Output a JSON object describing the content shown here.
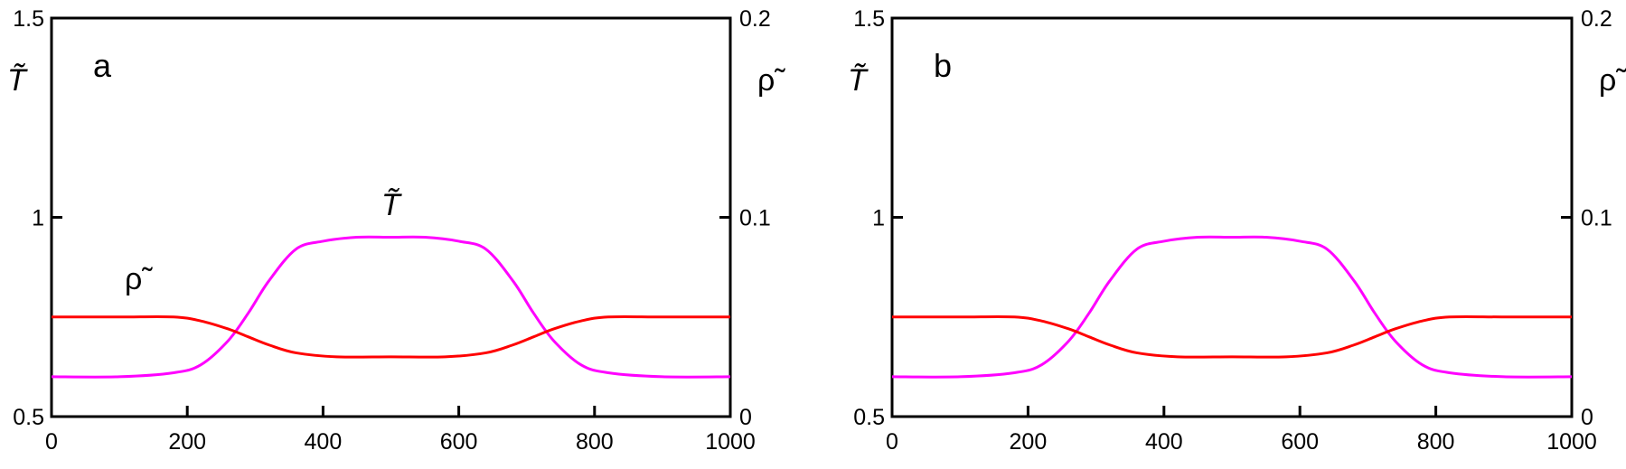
{
  "figure": {
    "colors": {
      "T": "#ff00ff",
      "rho": "#ff0000",
      "axis": "#000000"
    }
  },
  "chart_data": [
    {
      "type": "line",
      "panel_label": "a",
      "xlabel": "",
      "ylabel_left": "T̃",
      "ylabel_right": "ρ̃",
      "xlim": [
        0,
        1000
      ],
      "ylim_left": [
        0.5,
        1.5
      ],
      "ylim_right": [
        0,
        0.2
      ],
      "xticks": [
        "0",
        "200",
        "400",
        "600",
        "800",
        "1000"
      ],
      "yticks_left": [
        "0.5",
        "1",
        "1.5"
      ],
      "yticks_right": [
        "0",
        "0.1",
        "0.2"
      ],
      "annotations": [
        {
          "text": "T̃",
          "x": 490,
          "y_left": 1.06
        },
        {
          "text": "ρ̃",
          "x": 120,
          "y_left": 0.81
        }
      ],
      "grid": false,
      "series": [
        {
          "name": "T̃",
          "axis": "left",
          "color": "#ff00ff",
          "x": [
            0,
            100,
            180,
            220,
            260,
            290,
            320,
            360,
            400,
            450,
            500,
            550,
            600,
            640,
            680,
            710,
            740,
            780,
            820,
            900,
            1000
          ],
          "y": [
            0.6,
            0.6,
            0.61,
            0.63,
            0.69,
            0.76,
            0.84,
            0.92,
            0.94,
            0.95,
            0.95,
            0.95,
            0.94,
            0.92,
            0.84,
            0.76,
            0.69,
            0.63,
            0.61,
            0.6,
            0.6
          ]
        },
        {
          "name": "ρ̃",
          "axis": "right",
          "color": "#ff0000",
          "x": [
            0,
            100,
            180,
            220,
            260,
            290,
            320,
            360,
            420,
            500,
            580,
            640,
            680,
            710,
            740,
            780,
            820,
            900,
            1000
          ],
          "y": [
            0.05,
            0.05,
            0.05,
            0.048,
            0.044,
            0.04,
            0.036,
            0.032,
            0.03,
            0.03,
            0.03,
            0.032,
            0.036,
            0.04,
            0.044,
            0.048,
            0.05,
            0.05,
            0.05
          ]
        }
      ]
    },
    {
      "type": "line",
      "panel_label": "b",
      "xlabel": "",
      "ylabel_left": "T̃",
      "ylabel_right": "ρ̃",
      "xlim": [
        0,
        1000
      ],
      "ylim_left": [
        0.5,
        1.5
      ],
      "ylim_right": [
        0,
        0.2
      ],
      "xticks": [
        "0",
        "200",
        "400",
        "600",
        "800",
        "1000"
      ],
      "yticks_left": [
        "0.5",
        "1",
        "1.5"
      ],
      "yticks_right": [
        "0",
        "0.1",
        "0.2"
      ],
      "annotations": [],
      "grid": false,
      "series": [
        {
          "name": "T̃",
          "axis": "left",
          "color": "#ff00ff",
          "x": [
            0,
            100,
            180,
            220,
            260,
            290,
            320,
            360,
            400,
            450,
            500,
            550,
            600,
            640,
            680,
            710,
            740,
            780,
            820,
            900,
            1000
          ],
          "y": [
            0.6,
            0.6,
            0.61,
            0.63,
            0.69,
            0.76,
            0.84,
            0.92,
            0.94,
            0.95,
            0.95,
            0.95,
            0.94,
            0.92,
            0.84,
            0.76,
            0.69,
            0.63,
            0.61,
            0.6,
            0.6
          ]
        },
        {
          "name": "ρ̃",
          "axis": "right",
          "color": "#ff0000",
          "x": [
            0,
            100,
            180,
            220,
            260,
            290,
            320,
            360,
            420,
            500,
            580,
            640,
            680,
            710,
            740,
            780,
            820,
            900,
            1000
          ],
          "y": [
            0.05,
            0.05,
            0.05,
            0.048,
            0.044,
            0.04,
            0.036,
            0.032,
            0.03,
            0.03,
            0.03,
            0.032,
            0.036,
            0.04,
            0.044,
            0.048,
            0.05,
            0.05,
            0.05
          ]
        }
      ]
    }
  ]
}
